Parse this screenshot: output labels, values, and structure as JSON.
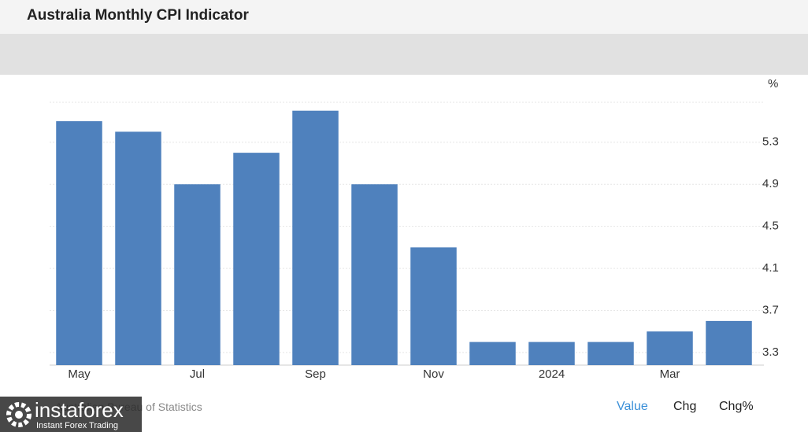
{
  "header": {
    "title": "Australia Monthly CPI Indicator"
  },
  "chart_data": {
    "type": "bar",
    "unit": "%",
    "categories": [
      "May",
      null,
      "Jul",
      null,
      "Sep",
      null,
      "Nov",
      null,
      "2024",
      null,
      "Mar",
      null
    ],
    "values": [
      5.5,
      5.4,
      4.9,
      5.2,
      5.6,
      4.9,
      4.3,
      3.4,
      3.4,
      3.4,
      3.5,
      3.6
    ],
    "color": "#4f81bd",
    "ylim": [
      3.18,
      5.68
    ],
    "yticks": [
      3.3,
      3.7,
      4.1,
      4.5,
      4.9,
      5.3
    ],
    "grid": true
  },
  "footer": {
    "source": "Australian Bureau of Statistics",
    "buttons": [
      "Value",
      "Chg",
      "Chg%"
    ]
  },
  "watermark": {
    "brand": "instaforex",
    "tagline": "Instant Forex Trading"
  }
}
